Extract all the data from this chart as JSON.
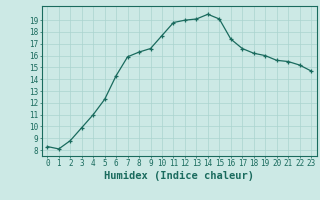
{
  "x": [
    0,
    1,
    2,
    3,
    4,
    5,
    6,
    7,
    8,
    9,
    10,
    11,
    12,
    13,
    14,
    15,
    16,
    17,
    18,
    19,
    20,
    21,
    22,
    23
  ],
  "y": [
    8.3,
    8.1,
    8.8,
    9.9,
    11.0,
    12.3,
    14.3,
    15.9,
    16.3,
    16.6,
    17.7,
    18.8,
    19.0,
    19.1,
    19.5,
    19.1,
    17.4,
    16.6,
    16.2,
    16.0,
    15.6,
    15.5,
    15.2,
    14.7
  ],
  "xlabel": "Humidex (Indice chaleur)",
  "line_color": "#1a6b5e",
  "marker": "+",
  "bg_color": "#cce9e5",
  "grid_color": "#aad4cf",
  "ylim_min": 7.5,
  "ylim_max": 20.2,
  "xlim_min": -0.5,
  "xlim_max": 23.5,
  "yticks": [
    8,
    9,
    10,
    11,
    12,
    13,
    14,
    15,
    16,
    17,
    18,
    19
  ],
  "xticks": [
    0,
    1,
    2,
    3,
    4,
    5,
    6,
    7,
    8,
    9,
    10,
    11,
    12,
    13,
    14,
    15,
    16,
    17,
    18,
    19,
    20,
    21,
    22,
    23
  ],
  "tick_color": "#1a6b5e",
  "label_color": "#1a6b5e",
  "tick_fontsize": 5.5,
  "xlabel_fontsize": 7.5
}
